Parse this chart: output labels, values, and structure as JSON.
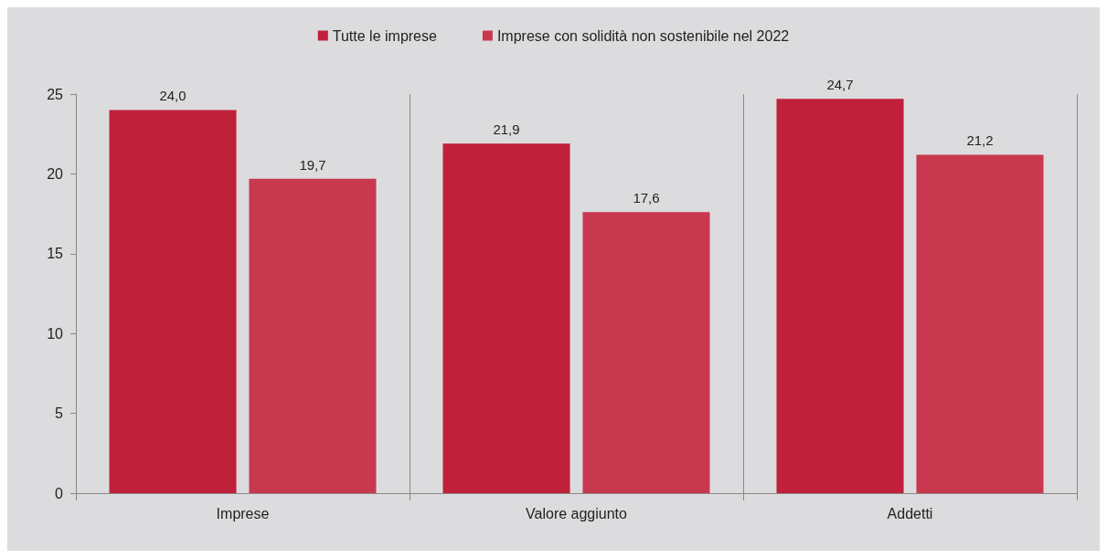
{
  "chart_data": {
    "type": "bar",
    "categories": [
      "Imprese",
      "Valore aggiunto",
      "Addetti"
    ],
    "series": [
      {
        "name": "Tutte le imprese",
        "color": "#c0203a",
        "values": [
          24.0,
          21.9,
          24.7
        ],
        "value_labels": [
          "24,0",
          "21,9",
          "24,7"
        ]
      },
      {
        "name": "Imprese con solidità non sostenibile nel 2022",
        "color": "#c8394f",
        "values": [
          19.7,
          17.6,
          21.2
        ],
        "value_labels": [
          "19,7",
          "17,6",
          "21,2"
        ]
      }
    ],
    "ylim": [
      0,
      25
    ],
    "yticks": [
      0,
      5,
      10,
      15,
      20,
      25
    ],
    "grid": "x",
    "legend": "top"
  }
}
